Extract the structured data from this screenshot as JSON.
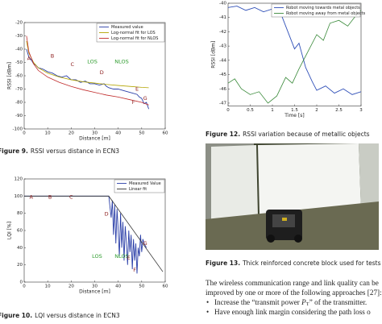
{
  "chart_data": [
    {
      "type": "line",
      "caption_label": "Figure 9.",
      "caption": "RSSI versus distance in ECN3",
      "xlabel": "Distance [m]",
      "ylabel": "RSSI [dBm]",
      "xlim": [
        0,
        60
      ],
      "xticks": [
        0,
        10,
        20,
        30,
        40,
        50,
        60
      ],
      "ylim": [
        -100,
        -20
      ],
      "yticks": [
        -100,
        -90,
        -80,
        -70,
        -60,
        -50,
        -40,
        -30,
        -20
      ],
      "legend": "upper right",
      "series": [
        {
          "name": "Measured value",
          "color": "#2b3fa8",
          "x": [
            1,
            2,
            3,
            4,
            5,
            6,
            8,
            10,
            12,
            14,
            16,
            18,
            20,
            22,
            24,
            26,
            28,
            30,
            32,
            34,
            35,
            36,
            38,
            40,
            42,
            44,
            46,
            48,
            49,
            50,
            51,
            52,
            53
          ],
          "values": [
            -40,
            -46,
            -48,
            -51,
            -52,
            -54,
            -55,
            -57,
            -58,
            -60,
            -61,
            -60,
            -63,
            -63,
            -65,
            -64,
            -66,
            -66,
            -67,
            -66,
            -68,
            -69,
            -70,
            -70,
            -71,
            -72,
            -73,
            -74,
            -76,
            -77,
            -81,
            -80,
            -85
          ]
        },
        {
          "name": "Log-normal fit for LOS",
          "color": "#b3a400",
          "x": [
            1,
            2,
            4,
            6,
            10,
            15,
            20,
            25,
            30,
            35,
            40,
            45,
            50,
            53
          ],
          "values": [
            -34,
            -43,
            -50,
            -54,
            -58,
            -61,
            -63,
            -64.5,
            -65.5,
            -66.5,
            -67.3,
            -68,
            -68.7,
            -69
          ]
        },
        {
          "name": "Log-normal fit for NLOS",
          "color": "#c02a2a",
          "x": [
            1,
            2,
            4,
            6,
            10,
            15,
            20,
            25,
            30,
            35,
            40,
            45,
            50,
            53
          ],
          "values": [
            -30,
            -42,
            -51,
            -56,
            -61,
            -65,
            -68,
            -70.5,
            -72.5,
            -74.5,
            -76,
            -78,
            -80,
            -82
          ]
        }
      ],
      "annotations": [
        {
          "text": "A",
          "x": 2,
          "y": -47,
          "color": "#8b1a1a"
        },
        {
          "text": "B",
          "x": 12,
          "y": -45,
          "color": "#8b1a1a"
        },
        {
          "text": "C",
          "x": 20.5,
          "y": -51.5,
          "color": "#8b1a1a"
        },
        {
          "text": "LOS",
          "x": 29,
          "y": -49.5,
          "color": "#2a9a2a"
        },
        {
          "text": "NLOS",
          "x": 41.5,
          "y": -49.5,
          "color": "#2a9a2a"
        },
        {
          "text": "D",
          "x": 33,
          "y": -57.5,
          "color": "#8b1a1a"
        },
        {
          "text": "E",
          "x": 48,
          "y": -70,
          "color": "#8b1a1a"
        },
        {
          "text": "F",
          "x": 46.5,
          "y": -80,
          "color": "#8b1a1a"
        },
        {
          "text": "G",
          "x": 51.5,
          "y": -77,
          "color": "#8b1a1a"
        }
      ]
    },
    {
      "type": "line",
      "caption_label": "Figure 10.",
      "caption": "LQI versus distance in ECN3",
      "xlabel": "Distance [m]",
      "ylabel": "LQI [%]",
      "xlim": [
        0,
        60
      ],
      "xticks": [
        0,
        10,
        20,
        30,
        40,
        50,
        60
      ],
      "ylim": [
        0,
        120
      ],
      "yticks": [
        0,
        20,
        40,
        60,
        80,
        100,
        120
      ],
      "legend": "upper right",
      "series": [
        {
          "name": "Measured Value",
          "color": "#2b3fa8",
          "x": [
            0,
            36,
            37,
            37.5,
            38,
            38.5,
            39,
            39.5,
            40,
            40.5,
            41,
            41.5,
            42,
            42.5,
            43,
            43.5,
            44,
            44.5,
            45,
            45.5,
            46,
            46.5,
            47,
            47.5,
            48,
            48.5,
            49,
            49.5,
            50,
            50.5,
            51,
            52
          ],
          "values": [
            100,
            100,
            75,
            95,
            55,
            90,
            45,
            85,
            60,
            30,
            80,
            40,
            70,
            25,
            65,
            45,
            20,
            60,
            35,
            55,
            15,
            50,
            25,
            45,
            10,
            40,
            30,
            55,
            35,
            50,
            45,
            40
          ]
        },
        {
          "name": "Linear fit",
          "color": "#333333",
          "x": [
            0,
            36,
            59
          ],
          "values": [
            100,
            100,
            12
          ]
        }
      ],
      "annotations": [
        {
          "text": "A",
          "x": 3,
          "y": 99,
          "color": "#8b1a1a"
        },
        {
          "text": "B",
          "x": 11,
          "y": 99,
          "color": "#8b1a1a"
        },
        {
          "text": "C",
          "x": 20,
          "y": 99,
          "color": "#8b1a1a"
        },
        {
          "text": "D",
          "x": 35,
          "y": 79,
          "color": "#8b1a1a"
        },
        {
          "text": "LOS",
          "x": 31,
          "y": 30,
          "color": "#2a9a2a"
        },
        {
          "text": "NLOS",
          "x": 41.5,
          "y": 30,
          "color": "#2a9a2a"
        },
        {
          "text": "E",
          "x": 44.5,
          "y": 28,
          "color": "#8b1a1a"
        },
        {
          "text": "F",
          "x": 47,
          "y": 14,
          "color": "#8b1a1a"
        },
        {
          "text": "G",
          "x": 51.5,
          "y": 45,
          "color": "#8b1a1a"
        }
      ]
    },
    {
      "type": "line",
      "caption_label": "Figure 12.",
      "caption": "RSSI variation because of metallic objects",
      "xlabel": "Time [s]",
      "ylabel": "RSSI [dBm]",
      "xlim": [
        0,
        3
      ],
      "xticks": [
        0,
        0.5,
        1,
        1.5,
        2,
        2.5,
        3
      ],
      "ylim": [
        -47.2,
        -40
      ],
      "yticks": [
        -47,
        -46,
        -45,
        -44,
        -43,
        -42,
        -41,
        -40
      ],
      "legend": "upper right",
      "series": [
        {
          "name": "Robot moving towards metal objects",
          "color": "#3050b8",
          "x": [
            0,
            0.2,
            0.4,
            0.6,
            0.8,
            1.0,
            1.2,
            1.35,
            1.5,
            1.6,
            1.75,
            1.9,
            2.0,
            2.2,
            2.4,
            2.6,
            2.8,
            3.0
          ],
          "values": [
            -40.3,
            -40.2,
            -40.5,
            -40.3,
            -40.6,
            -40.4,
            -40.8,
            -42.0,
            -43.2,
            -42.8,
            -44.5,
            -45.5,
            -46.1,
            -45.8,
            -46.3,
            -46.0,
            -46.4,
            -46.2
          ]
        },
        {
          "name": "Robot moving away from metal objects",
          "color": "#3a8a3a",
          "x": [
            0,
            0.15,
            0.3,
            0.5,
            0.7,
            0.9,
            1.1,
            1.3,
            1.45,
            1.6,
            1.8,
            2.0,
            2.15,
            2.3,
            2.5,
            2.7,
            2.9,
            3.0
          ],
          "values": [
            -45.6,
            -45.3,
            -46.0,
            -46.4,
            -46.2,
            -47.0,
            -46.5,
            -45.2,
            -45.6,
            -44.6,
            -43.4,
            -42.2,
            -42.6,
            -41.4,
            -41.2,
            -41.6,
            -40.8,
            -40.5
          ]
        }
      ]
    }
  ],
  "figure13": {
    "caption_label": "Figure 13.",
    "caption": "Thick reinforced concrete block used for tests"
  },
  "body": {
    "lines": [
      "The wireless communication range and link quality can be",
      "improved by one or more of the following approaches [27]:"
    ],
    "bullet1": {
      "before": "Increase the “transmit power ",
      "symbol": "P",
      "subscript": "T",
      "after": "” of the transmitter."
    },
    "bullet2": "Have enough link margin considering the path loss o"
  }
}
